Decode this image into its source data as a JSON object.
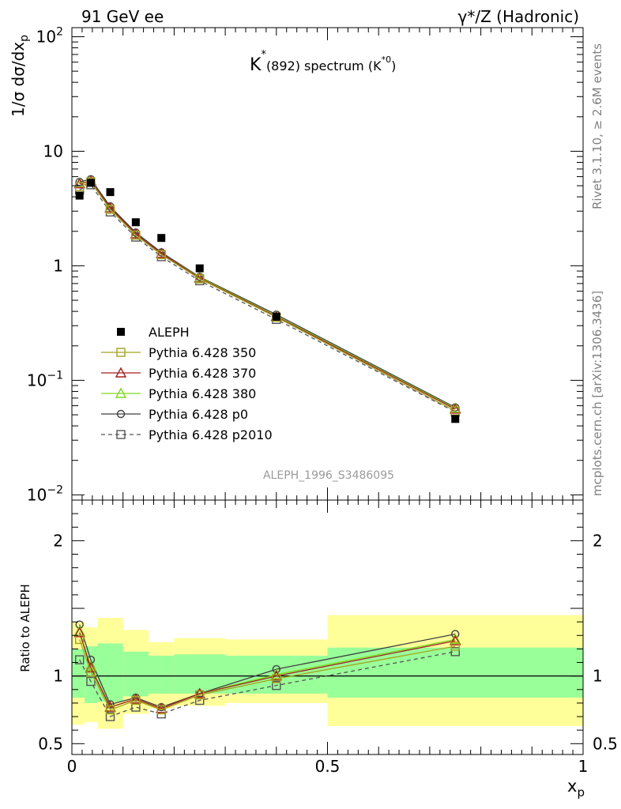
{
  "header": {
    "left": "91 GeV ee",
    "right": "γ*/Z (Hadronic)"
  },
  "side_labels": {
    "rivet": "Rivet 3.1.10, ≥ 2.6M events",
    "mcplots": "mcplots.cern.ch [arXiv:1306.3436]"
  },
  "chart_data": [
    {
      "type": "scatter",
      "title": {
        "main": "K",
        "main_sup": "*",
        "sub": "(892) spectrum (K",
        "sub_sup": "*0",
        "sub_end": ")"
      },
      "ylabel": "1/σ dσ/dx",
      "ylabel_sub": "p",
      "yscale": "log",
      "ylim": [
        0.009,
        120
      ],
      "xlim": [
        0,
        1
      ],
      "yticks": [
        {
          "v": 100,
          "base": "10",
          "exp": "2"
        },
        {
          "v": 10,
          "base": "10",
          "exp": ""
        },
        {
          "v": 1,
          "base": "1",
          "exp": ""
        },
        {
          "v": 0.1,
          "base": "10",
          "exp": "−1"
        },
        {
          "v": 0.01,
          "base": "10",
          "exp": "−2"
        }
      ],
      "watermark": "ALEPH_1996_S3486095",
      "x": [
        0.015,
        0.037,
        0.075,
        0.125,
        0.175,
        0.25,
        0.4,
        0.75
      ],
      "series": [
        {
          "name": "ALEPH",
          "color": "#000000",
          "marker": "filled-square",
          "line": "none",
          "values": [
            4.1,
            5.3,
            4.4,
            2.4,
            1.75,
            0.95,
            0.36,
            0.046
          ]
        },
        {
          "name": "Pythia 6.428 350",
          "color": "#a3a31e",
          "marker": "open-square",
          "line": "solid",
          "values": [
            4.9,
            5.4,
            3.1,
            1.85,
            1.25,
            0.77,
            0.355,
            0.054
          ]
        },
        {
          "name": "Pythia 6.428 370",
          "color": "#a31e1e",
          "marker": "open-triangle",
          "line": "solid",
          "values": [
            5.2,
            5.5,
            3.2,
            1.9,
            1.28,
            0.78,
            0.36,
            0.056
          ]
        },
        {
          "name": "Pythia 6.428 380",
          "color": "#7fd61e",
          "marker": "open-triangle",
          "line": "solid",
          "values": [
            5.25,
            5.5,
            3.2,
            1.9,
            1.28,
            0.79,
            0.365,
            0.057
          ]
        },
        {
          "name": "Pythia 6.428 p0",
          "color": "#404040",
          "marker": "open-circle",
          "line": "solid",
          "values": [
            5.4,
            5.7,
            3.3,
            1.95,
            1.31,
            0.8,
            0.375,
            0.058
          ]
        },
        {
          "name": "Pythia 6.428 p2010",
          "color": "#555555",
          "marker": "open-square",
          "line": "dashed",
          "values": [
            4.6,
            5.1,
            2.95,
            1.78,
            1.2,
            0.74,
            0.34,
            0.053
          ]
        }
      ]
    },
    {
      "type": "line",
      "ylabel": "Ratio to ALEPH",
      "ylim": [
        0.42,
        2.3
      ],
      "xlim": [
        0,
        1
      ],
      "xlabel": "x",
      "xlabel_sub": "p",
      "yticks": [
        {
          "v": 2,
          "label": "2"
        },
        {
          "v": 1,
          "label": "1"
        },
        {
          "v": 0.5,
          "label": "0.5"
        }
      ],
      "xticks": [
        {
          "v": 0,
          "label": "0"
        },
        {
          "v": 0.5,
          "label": "0.5"
        },
        {
          "v": 1,
          "label": "1"
        }
      ],
      "bands": [
        {
          "x0": 0.0,
          "x1": 0.025,
          "inner": [
            0.84,
            1.2
          ],
          "outer": [
            0.64,
            1.4
          ]
        },
        {
          "x0": 0.025,
          "x1": 0.05,
          "inner": [
            0.8,
            1.22
          ],
          "outer": [
            0.66,
            1.36
          ]
        },
        {
          "x0": 0.05,
          "x1": 0.1,
          "inner": [
            0.81,
            1.24
          ],
          "outer": [
            0.61,
            1.43
          ]
        },
        {
          "x0": 0.1,
          "x1": 0.15,
          "inner": [
            0.85,
            1.18
          ],
          "outer": [
            0.72,
            1.34
          ]
        },
        {
          "x0": 0.15,
          "x1": 0.2,
          "inner": [
            0.87,
            1.15
          ],
          "outer": [
            0.76,
            1.25
          ]
        },
        {
          "x0": 0.2,
          "x1": 0.3,
          "inner": [
            0.87,
            1.16
          ],
          "outer": [
            0.78,
            1.28
          ]
        },
        {
          "x0": 0.3,
          "x1": 0.5,
          "inner": [
            0.87,
            1.15
          ],
          "outer": [
            0.8,
            1.27
          ]
        },
        {
          "x0": 0.5,
          "x1": 1.0,
          "inner": [
            0.84,
            1.21
          ],
          "outer": [
            0.63,
            1.45
          ]
        }
      ],
      "x": [
        0.015,
        0.037,
        0.075,
        0.125,
        0.175,
        0.25,
        0.4,
        0.75
      ],
      "series": [
        {
          "name": "Pythia 6.428 350",
          "color": "#a3a31e",
          "marker": "open-square",
          "line": "solid",
          "values": [
            1.27,
            1.03,
            0.75,
            0.82,
            0.75,
            0.86,
            0.98,
            1.22
          ]
        },
        {
          "name": "Pythia 6.428 370",
          "color": "#a31e1e",
          "marker": "open-triangle",
          "line": "solid",
          "values": [
            1.32,
            1.06,
            0.77,
            0.83,
            0.76,
            0.87,
            1.0,
            1.26
          ]
        },
        {
          "name": "Pythia 6.428 380",
          "color": "#7fd61e",
          "marker": "open-triangle",
          "line": "solid",
          "values": [
            1.33,
            1.07,
            0.77,
            0.83,
            0.76,
            0.87,
            1.01,
            1.27
          ]
        },
        {
          "name": "Pythia 6.428 p0",
          "color": "#404040",
          "marker": "open-circle",
          "line": "solid",
          "values": [
            1.38,
            1.12,
            0.79,
            0.84,
            0.77,
            0.87,
            1.05,
            1.31
          ]
        },
        {
          "name": "Pythia 6.428 p2010",
          "color": "#555555",
          "marker": "open-square",
          "line": "dashed",
          "values": [
            1.12,
            0.96,
            0.7,
            0.77,
            0.72,
            0.82,
            0.93,
            1.18
          ]
        }
      ]
    }
  ]
}
